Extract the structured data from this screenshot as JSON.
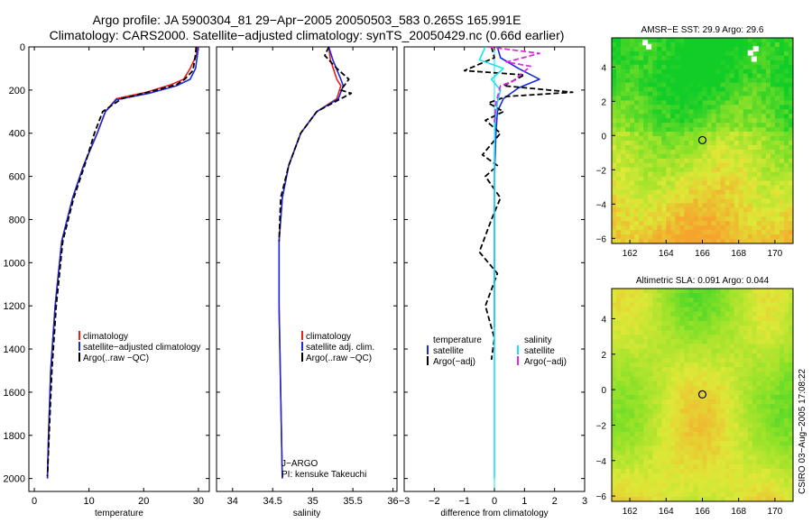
{
  "header": {
    "line1": "Argo profile: JA 5900304_81 29−Apr−2005 20050503_583 0.265S 165.991E",
    "line2": "Climatology: CARS2000. Satellite−adjusted climatology: synTS_20050429.nc (0.66d earlier)"
  },
  "stamp": "CSIRO 03−Aug−2005 17:08:22",
  "colors": {
    "red": "#e8201e",
    "blue": "#1b2bd6",
    "black": "#000000",
    "cyan": "#19e3f0",
    "magenta": "#e02ae0"
  },
  "chart_data": [
    {
      "type": "line",
      "name": "temperature",
      "xlabel": "temperature",
      "xlim": [
        -1,
        32
      ],
      "xticks": [
        0,
        10,
        20,
        30
      ],
      "ylim": [
        2060,
        0
      ],
      "yticks": [
        0,
        200,
        400,
        600,
        800,
        1000,
        1200,
        1400,
        1600,
        1800,
        2000
      ],
      "legend": [
        "climatology",
        "satellite−adjusted climatology",
        "Argo(..raw −QC)"
      ],
      "series": [
        {
          "name": "climatology",
          "color": "#e8201e",
          "x": [
            29.8,
            29.6,
            28.5,
            27.3,
            25,
            20.5,
            15,
            13,
            11.5,
            9,
            7,
            5,
            3.8,
            3,
            2.6,
            2.4
          ],
          "y": [
            0,
            40,
            100,
            150,
            175,
            210,
            240,
            300,
            400,
            550,
            700,
            900,
            1200,
            1500,
            1800,
            2000
          ]
        },
        {
          "name": "satellite-adjusted climatology",
          "color": "#1b2bd6",
          "x": [
            30,
            29.8,
            29.5,
            28.5,
            26,
            21,
            15,
            13,
            11.5,
            9,
            7,
            5,
            3.8,
            3,
            2.6,
            2.4
          ],
          "y": [
            0,
            40,
            100,
            150,
            180,
            215,
            245,
            300,
            400,
            550,
            700,
            900,
            1200,
            1500,
            1800,
            2000
          ]
        },
        {
          "name": "Argo",
          "color": "#000000",
          "dashed": true,
          "x": [
            29.6,
            29.4,
            29,
            27.5,
            26,
            20,
            16,
            12.5,
            11,
            9.2,
            7.2,
            5.2,
            4,
            3.2,
            2.7,
            2.4
          ],
          "y": [
            0,
            50,
            110,
            150,
            175,
            215,
            240,
            300,
            400,
            550,
            700,
            900,
            1200,
            1500,
            1800,
            1990
          ]
        }
      ]
    },
    {
      "type": "line",
      "name": "salinity",
      "xlabel": "salinity",
      "xlim": [
        33.8,
        36.05
      ],
      "xticks": [
        34,
        34.5,
        35,
        35.5,
        36
      ],
      "ylim": [
        2060,
        0
      ],
      "legend": [
        "climatology",
        "satellite adj. clim.",
        "Argo(..raw −QC)"
      ],
      "annotation": [
        "J−ARGO",
        "PI: kensuke Takeuchi"
      ],
      "series": [
        {
          "name": "climatology",
          "color": "#e8201e",
          "x": [
            35.2,
            35.22,
            35.3,
            35.35,
            35.3,
            35.05,
            34.85,
            34.7,
            34.62,
            34.58,
            34.58,
            34.6,
            34.62
          ],
          "y": [
            0,
            60,
            150,
            180,
            240,
            300,
            400,
            550,
            700,
            900,
            1200,
            1600,
            2000
          ]
        },
        {
          "name": "satellite adj. clim.",
          "color": "#1b2bd6",
          "x": [
            35.2,
            35.25,
            35.35,
            35.38,
            35.32,
            35.05,
            34.85,
            34.7,
            34.62,
            34.58,
            34.58,
            34.6,
            34.62
          ],
          "y": [
            0,
            60,
            150,
            180,
            240,
            300,
            400,
            550,
            700,
            900,
            1200,
            1600,
            2000
          ]
        },
        {
          "name": "Argo",
          "color": "#000000",
          "dashed": true,
          "x": [
            35.2,
            35.15,
            35.3,
            35.45,
            35.35,
            35.48,
            35.3,
            35.05,
            34.85,
            34.7,
            34.6,
            34.58
          ],
          "y": [
            0,
            40,
            100,
            150,
            200,
            215,
            250,
            300,
            400,
            550,
            700,
            900
          ]
        }
      ]
    },
    {
      "type": "line",
      "name": "difference",
      "xlabel": "difference from climatology",
      "xlim": [
        -3,
        3
      ],
      "xticks": [
        -3,
        -2,
        -1,
        0,
        1,
        2,
        3
      ],
      "ylim": [
        2060,
        0
      ],
      "legend_left": [
        "temperature",
        "satellite",
        "Argo(−adj)"
      ],
      "legend_right": [
        "salinity",
        "satellite",
        "Argo(−adj)"
      ],
      "series": [
        {
          "name": "temperature satellite",
          "color": "#1b2bd6",
          "x": [
            0.1,
            0.2,
            0.8,
            1.5,
            0.8,
            0.3,
            0.1,
            0.05,
            0,
            0,
            0
          ],
          "y": [
            0,
            50,
            100,
            150,
            190,
            240,
            300,
            400,
            600,
            1000,
            1300
          ]
        },
        {
          "name": "temperature Argo",
          "color": "#000000",
          "dashed": true,
          "x": [
            -0.1,
            0,
            -1,
            1,
            0.3,
            2.6,
            0.4,
            -0.2,
            0.3,
            -0.3,
            0.2,
            -0.4,
            0.1,
            -0.3,
            0.2,
            -0.1,
            -0.5,
            0.1,
            -0.3,
            0,
            -0.1
          ],
          "y": [
            0,
            50,
            110,
            130,
            180,
            210,
            230,
            260,
            300,
            340,
            400,
            500,
            550,
            600,
            700,
            800,
            950,
            1050,
            1200,
            1350,
            1450
          ]
        },
        {
          "name": "salinity satellite",
          "color": "#19e3f0",
          "x": [
            -0.3,
            -0.5,
            0.3,
            -0.1,
            0.2,
            0.1,
            0.02,
            0,
            0,
            0,
            0
          ],
          "y": [
            0,
            60,
            100,
            150,
            200,
            260,
            350,
            500,
            800,
            1200,
            2000
          ]
        },
        {
          "name": "salinity Argo",
          "color": "#e02ae0",
          "dashed": true,
          "x": [
            -0.2,
            1.5,
            0.4,
            1.2,
            0.6,
            0.2,
            0.05,
            0
          ],
          "y": [
            0,
            30,
            70,
            90,
            160,
            180,
            260,
            350
          ]
        }
      ]
    },
    {
      "type": "heatmap",
      "name": "sst-map",
      "title": "AMSR−E SST: 29.9 Argo: 29.6",
      "xlim": [
        161,
        171
      ],
      "ylim": [
        -6.3,
        5.7
      ],
      "xticks": [
        162,
        164,
        166,
        168,
        170
      ],
      "yticks": [
        -6,
        -4,
        -2,
        0,
        2,
        4
      ],
      "marker": [
        166,
        -0.27
      ]
    },
    {
      "type": "heatmap",
      "name": "sla-map",
      "title": "Altimetric SLA: 0.091 Argo: 0.044",
      "xlim": [
        161,
        171
      ],
      "ylim": [
        -6.3,
        5.7
      ],
      "xticks": [
        162,
        164,
        166,
        168,
        170
      ],
      "yticks": [
        -6,
        -4,
        -2,
        0,
        2,
        4
      ],
      "marker": [
        166,
        -0.27
      ]
    }
  ]
}
